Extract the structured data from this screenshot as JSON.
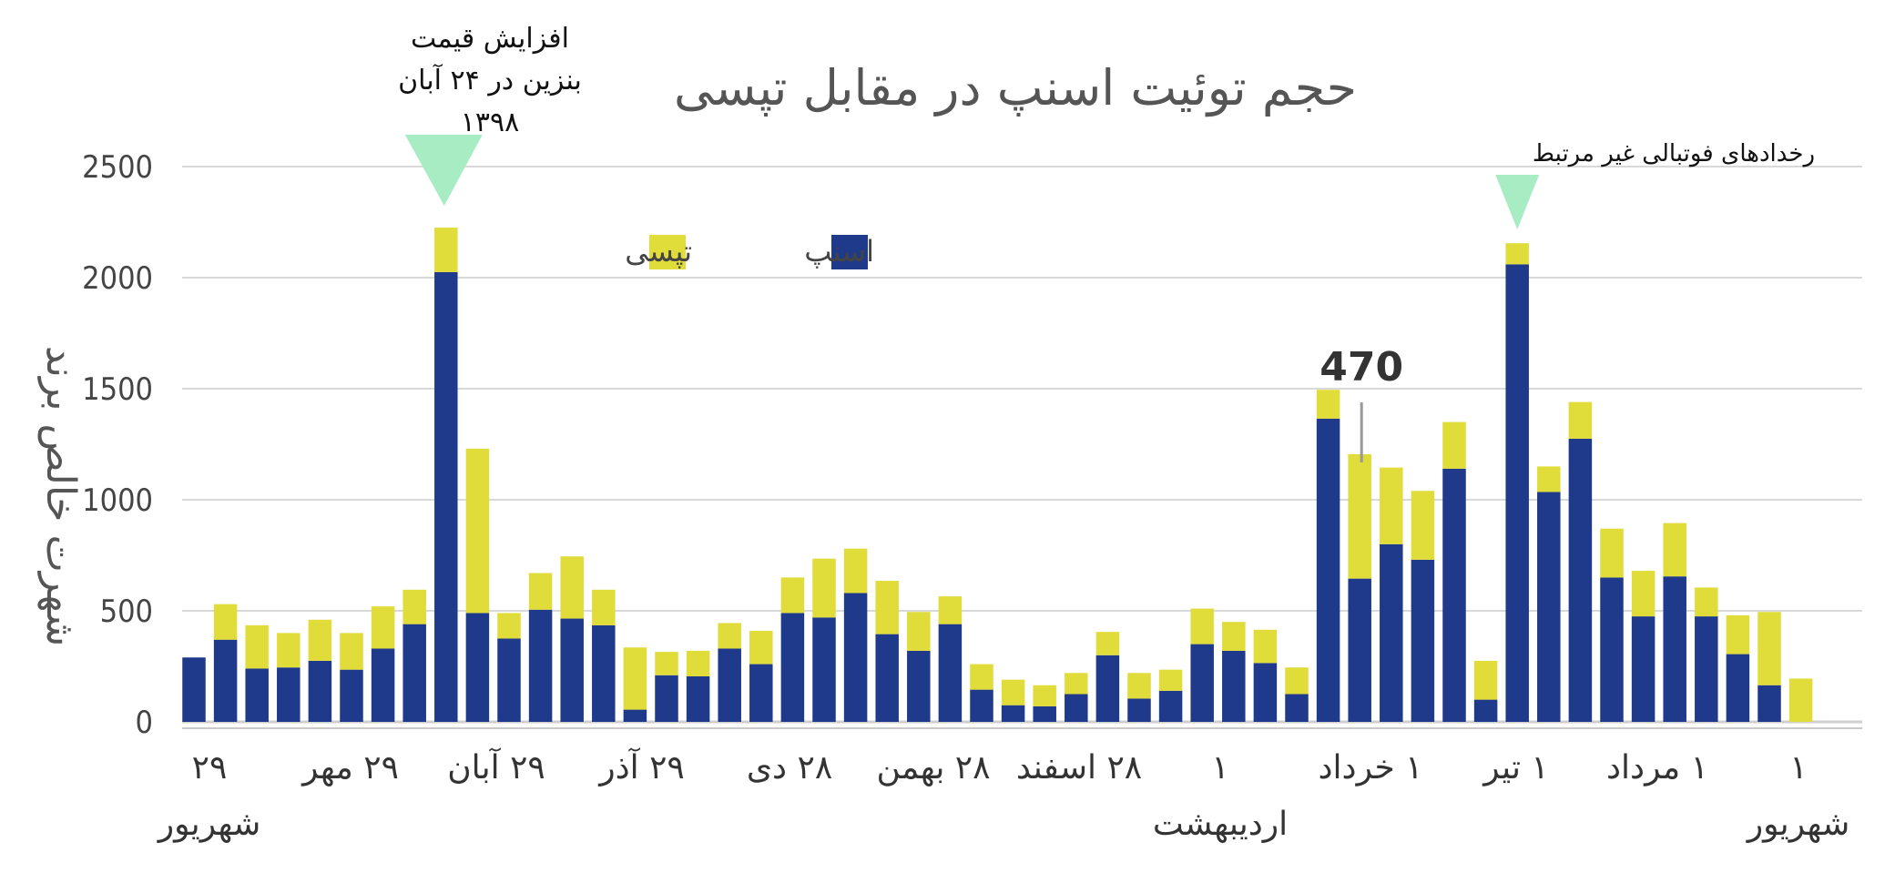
{
  "chart_data": {
    "type": "bar",
    "stacked": true,
    "title": "حجم توئیت اسنپ در مقابل تپسی",
    "ylabel": "شهرت خالص برند",
    "xlabel": "",
    "ylim": [
      0,
      2500
    ],
    "yticks": [
      "0",
      "500",
      "1000",
      "1500",
      "2000",
      "2500"
    ],
    "grid": true,
    "legend_position": "top-center",
    "series": [
      {
        "name": "اسنپ",
        "color": "#1f3a8a",
        "values": [
          290,
          370,
          240,
          245,
          275,
          235,
          330,
          440,
          2025,
          490,
          375,
          505,
          465,
          435,
          55,
          210,
          205,
          330,
          260,
          490,
          470,
          580,
          395,
          320,
          440,
          145,
          75,
          70,
          125,
          300,
          105,
          140,
          350,
          320,
          265,
          125,
          1365,
          645,
          800,
          730,
          1140,
          100,
          2060,
          1035,
          1275,
          650,
          475,
          655,
          475,
          305,
          165,
          0
        ]
      },
      {
        "name": "تپسی",
        "color": "#e0dc3a",
        "values": [
          0,
          160,
          195,
          155,
          185,
          165,
          190,
          155,
          200,
          740,
          115,
          165,
          280,
          160,
          280,
          105,
          115,
          115,
          150,
          160,
          265,
          200,
          240,
          175,
          125,
          115,
          115,
          95,
          95,
          105,
          115,
          95,
          160,
          130,
          150,
          120,
          130,
          560,
          345,
          310,
          210,
          175,
          95,
          115,
          165,
          220,
          205,
          240,
          130,
          175,
          330,
          195
        ]
      }
    ],
    "x_tick_labels": [
      [
        "۲۹",
        "شهریور"
      ],
      [
        "۲۹ مهر"
      ],
      [
        "۲۹ آبان"
      ],
      [
        "۲۹ آذر"
      ],
      [
        "۲۸ دی"
      ],
      [
        "۲۸ بهمن"
      ],
      [
        "۲۸ اسفند"
      ],
      [
        "۱",
        "اردیبهشت"
      ],
      [
        "۱ خرداد"
      ],
      [
        "۱ تیر"
      ],
      [
        "۱ مرداد"
      ],
      [
        "۱",
        "شهریور"
      ]
    ],
    "annotations": [
      {
        "text": [
          "افزایش قیمت",
          "بنزین در ۲۴ آبان",
          "۱۳۹۸"
        ],
        "marker_color": "#a8ecc4"
      },
      {
        "text": [
          "رخدادهای فوتبالی غیر مرتبط"
        ],
        "marker_color": "#a8ecc4"
      },
      {
        "text": [
          "470"
        ]
      }
    ]
  }
}
